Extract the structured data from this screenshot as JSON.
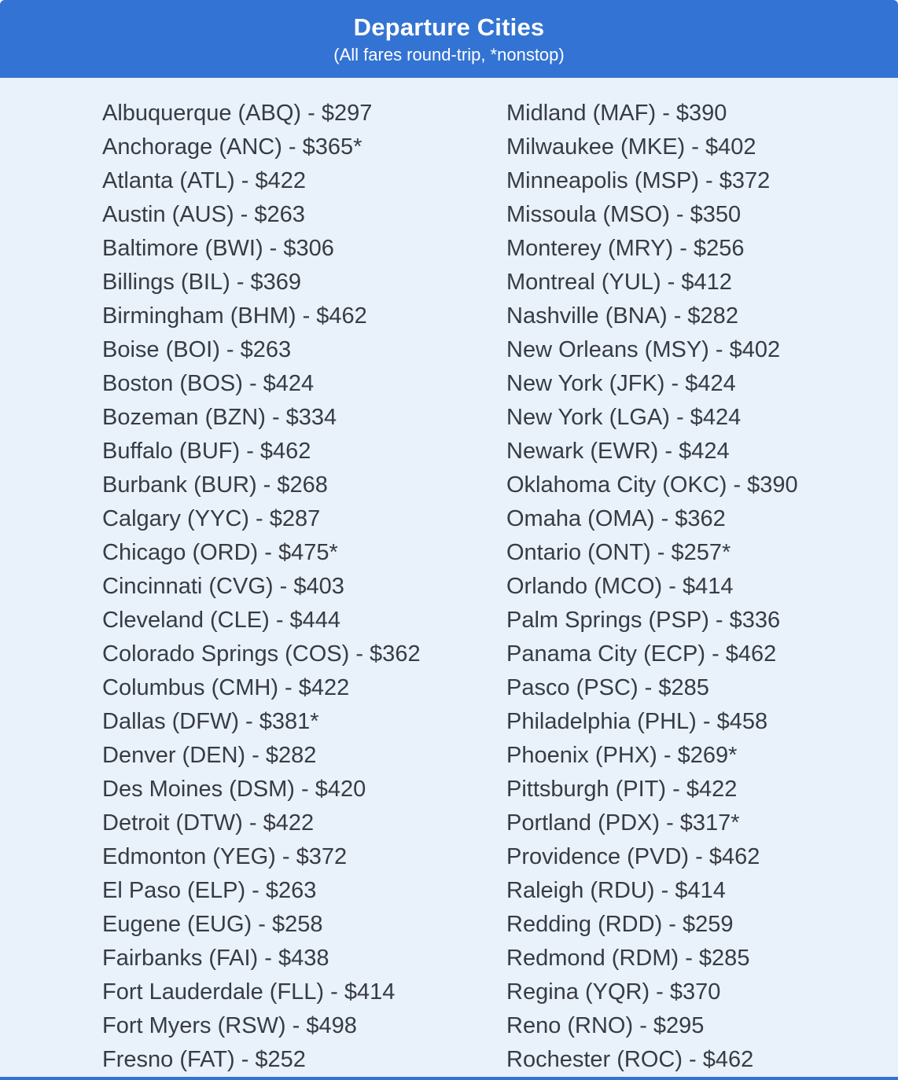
{
  "colors": {
    "accent": "#3373d3",
    "page-bg": "#e9f1fb",
    "text": "#383c42",
    "header-text": "#ffffff"
  },
  "header": {
    "title": "Departure Cities",
    "subtitle": "(All fares round-trip, *nonstop)"
  },
  "fares": {
    "left": [
      "Albuquerque (ABQ) - $297",
      "Anchorage (ANC) - $365*",
      "Atlanta (ATL) - $422",
      "Austin (AUS) - $263",
      "Baltimore (BWI) - $306",
      "Billings (BIL) - $369",
      "Birmingham (BHM) - $462",
      "Boise (BOI) - $263",
      "Boston (BOS) - $424",
      "Bozeman (BZN) - $334",
      "Buffalo (BUF) - $462",
      "Burbank (BUR) - $268",
      "Calgary (YYC) - $287",
      "Chicago (ORD) - $475*",
      "Cincinnati (CVG) - $403",
      "Cleveland (CLE) - $444",
      "Colorado Springs (COS) - $362",
      "Columbus (CMH) - $422",
      "Dallas (DFW) - $381*",
      "Denver (DEN) - $282",
      "Des Moines (DSM) - $420",
      "Detroit (DTW) - $422",
      "Edmonton (YEG) - $372",
      "El Paso (ELP) - $263",
      "Eugene (EUG) - $258",
      "Fairbanks (FAI) - $438",
      "Fort Lauderdale (FLL) - $414",
      "Fort Myers (RSW) - $498",
      "Fresno (FAT) - $252"
    ],
    "right": [
      "Midland (MAF) - $390",
      "Milwaukee (MKE) - $402",
      "Minneapolis (MSP) - $372",
      "Missoula (MSO) - $350",
      "Monterey (MRY) - $256",
      "Montreal (YUL) - $412",
      "Nashville (BNA) - $282",
      "New Orleans (MSY) - $402",
      "New York (JFK) - $424",
      "New York (LGA) - $424",
      "Newark (EWR) - $424",
      "Oklahoma City (OKC) - $390",
      "Omaha (OMA) - $362",
      "Ontario (ONT) - $257*",
      "Orlando (MCO) - $414",
      "Palm Springs (PSP) - $336",
      "Panama City (ECP) - $462",
      "Pasco (PSC) - $285",
      "Philadelphia (PHL) - $458",
      "Phoenix (PHX) - $269*",
      "Pittsburgh (PIT) - $422",
      "Portland (PDX) - $317*",
      "Providence (PVD) - $462",
      "Raleigh (RDU) - $414",
      "Redding (RDD) - $259",
      "Redmond (RDM) - $285",
      "Regina (YQR) - $370",
      "Reno (RNO) - $295",
      "Rochester (ROC) - $462"
    ]
  }
}
